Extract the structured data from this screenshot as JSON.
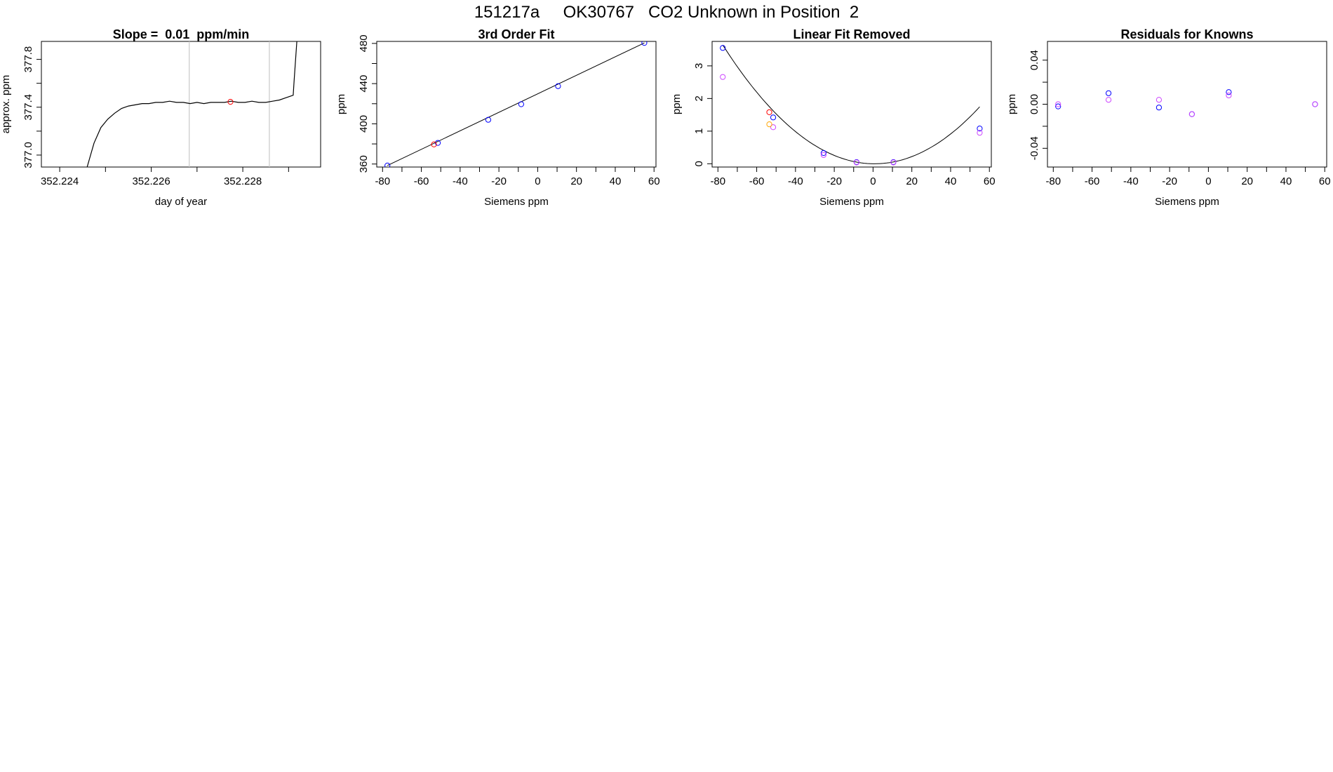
{
  "figure": {
    "title": "151217a     OK30767   CO2 Unknown in Position  2"
  },
  "chart_data": [
    {
      "type": "line",
      "title": "Slope =  0.01  ppm/min",
      "xlabel": "day of year",
      "ylabel": "approx. ppm",
      "xlim": [
        352.2236,
        352.2297
      ],
      "ylim": [
        376.9,
        377.95
      ],
      "x_ticks": [
        352.224,
        352.225,
        352.226,
        352.227,
        352.228,
        352.229
      ],
      "x_tick_labels": [
        "352.224",
        "",
        "352.226",
        "",
        "352.228",
        ""
      ],
      "y_ticks": [
        377.0,
        377.2,
        377.4,
        377.6,
        377.8
      ],
      "y_tick_labels": [
        "377.0",
        "",
        "377.4",
        "",
        "377.8"
      ],
      "window_lines": [
        352.22683,
        352.22858
      ],
      "window_line_color": "#c8c8c8",
      "line_color": "#000000",
      "series": [
        {
          "x": [
            352.2246,
            352.22475,
            352.2249,
            352.22505,
            352.2252,
            352.22535,
            352.2255,
            352.22565,
            352.2258,
            352.22595,
            352.2261,
            352.22625,
            352.2264,
            352.22655,
            352.2267,
            352.22685,
            352.227,
            352.22715,
            352.2273,
            352.22745,
            352.2276,
            352.22775,
            352.2279,
            352.22805,
            352.2282,
            352.22835,
            352.2285,
            352.22865,
            352.2288,
            352.22895,
            352.2291,
            352.22912,
            352.22918
          ],
          "y": [
            376.9,
            377.1,
            377.23,
            377.3,
            377.35,
            377.39,
            377.41,
            377.42,
            377.43,
            377.43,
            377.44,
            377.44,
            377.45,
            377.44,
            377.44,
            377.43,
            377.44,
            377.43,
            377.44,
            377.44,
            377.44,
            377.45,
            377.44,
            377.44,
            377.45,
            377.44,
            377.44,
            377.45,
            377.46,
            377.48,
            377.5,
            377.62,
            377.95
          ]
        }
      ],
      "markers": [
        {
          "x": 352.22773,
          "y": 377.445,
          "color": "#ff0000"
        }
      ]
    },
    {
      "type": "scatter",
      "title": "3rd Order Fit",
      "xlabel": "Siemens ppm",
      "ylabel": "ppm",
      "xlim": [
        -83,
        61
      ],
      "ylim": [
        357,
        482
      ],
      "x_ticks": [
        -80,
        -70,
        -60,
        -50,
        -40,
        -30,
        -20,
        -10,
        0,
        10,
        20,
        30,
        40,
        50,
        60
      ],
      "x_tick_labels": [
        "-80",
        "",
        "-60",
        "",
        "-40",
        "",
        "-20",
        "",
        "0",
        "",
        "20",
        "",
        "40",
        "",
        "60"
      ],
      "y_ticks": [
        360,
        380,
        400,
        420,
        440,
        460,
        480
      ],
      "y_tick_labels": [
        "360",
        "",
        "400",
        "",
        "440",
        "",
        "480"
      ],
      "fit_line": {
        "x": [
          -77.5,
          55
        ],
        "y": [
          358.5,
          480.5
        ],
        "color": "#000000"
      },
      "series": [
        {
          "color": "#0000ff",
          "x": [
            -77.5,
            -51.5,
            -25.5,
            -8.5,
            10.5,
            55
          ],
          "y": [
            358.5,
            381.0,
            404.0,
            419.5,
            437.5,
            480.5
          ]
        },
        {
          "color": "#ff0000",
          "x": [
            -53.5
          ],
          "y": [
            379.5
          ]
        }
      ]
    },
    {
      "type": "scatter",
      "title": "Linear Fit Removed",
      "xlabel": "Siemens ppm",
      "ylabel": "ppm",
      "xlim": [
        -83,
        61
      ],
      "ylim": [
        -0.1,
        3.75
      ],
      "x_ticks": [
        -80,
        -70,
        -60,
        -50,
        -40,
        -30,
        -20,
        -10,
        0,
        10,
        20,
        30,
        40,
        50,
        60
      ],
      "x_tick_labels": [
        "-80",
        "",
        "-60",
        "",
        "-40",
        "",
        "-20",
        "",
        "0",
        "",
        "20",
        "",
        "40",
        "",
        "60"
      ],
      "y_ticks": [
        0,
        1,
        2,
        3
      ],
      "y_tick_labels": [
        "0",
        "1",
        "2",
        "3"
      ],
      "curve": {
        "type": "quadratic",
        "a": 0.000594,
        "b": -0.000925,
        "c": 0.0,
        "from": -77.5,
        "to": 55,
        "color": "#000000"
      },
      "series": [
        {
          "color": "#0000ff",
          "x": [
            -77.5,
            -51.5,
            -25.5,
            -8.5,
            10.5,
            55
          ],
          "y": [
            3.55,
            1.42,
            0.33,
            0.05,
            0.05,
            1.08
          ]
        },
        {
          "color": "#cc44ff",
          "x": [
            -77.5,
            -51.5,
            -25.5,
            -8.5,
            10.5,
            55
          ],
          "y": [
            2.66,
            1.12,
            0.27,
            0.04,
            0.04,
            0.95
          ]
        },
        {
          "color": "#ff0000",
          "x": [
            -53.5
          ],
          "y": [
            1.58
          ]
        },
        {
          "color": "#ffa500",
          "x": [
            -53.5
          ],
          "y": [
            1.21
          ]
        }
      ]
    },
    {
      "type": "scatter",
      "title": "Residuals for Knowns",
      "xlabel": "Siemens ppm",
      "ylabel": "ppm",
      "xlim": [
        -83,
        61
      ],
      "ylim": [
        -0.057,
        0.057
      ],
      "x_ticks": [
        -80,
        -70,
        -60,
        -50,
        -40,
        -30,
        -20,
        -10,
        0,
        10,
        20,
        30,
        40,
        50,
        60
      ],
      "x_tick_labels": [
        "-80",
        "",
        "-60",
        "",
        "-40",
        "",
        "-20",
        "",
        "0",
        "",
        "20",
        "",
        "40",
        "",
        "60"
      ],
      "y_ticks": [
        -0.04,
        -0.02,
        0.0,
        0.02,
        0.04
      ],
      "y_tick_labels": [
        "-0.04",
        "",
        "0.00",
        "",
        "0.04"
      ],
      "series": [
        {
          "color": "#0000ff",
          "x": [
            -77.5,
            -51.5,
            -25.5,
            -8.5,
            10.5,
            55
          ],
          "y": [
            -0.002,
            0.01,
            -0.003,
            -0.009,
            0.011,
            0.0
          ]
        },
        {
          "color": "#cc44ff",
          "x": [
            -77.5,
            -51.5,
            -25.5,
            -8.5,
            10.5,
            55
          ],
          "y": [
            0.0,
            0.004,
            0.004,
            -0.009,
            0.008,
            0.0
          ]
        }
      ]
    }
  ]
}
